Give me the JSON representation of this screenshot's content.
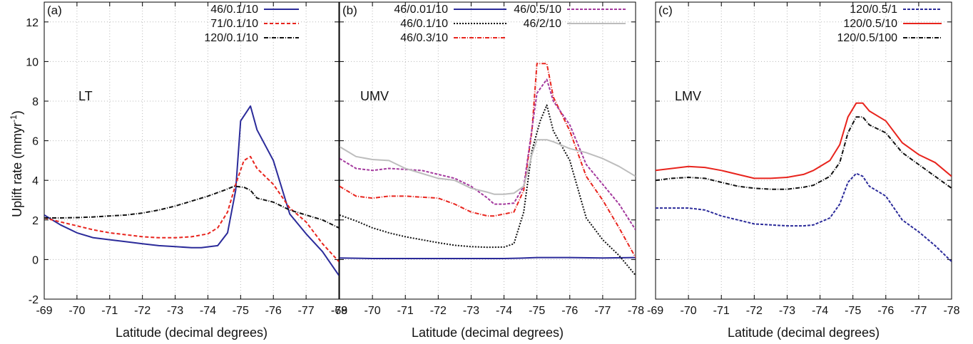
{
  "figure": {
    "ylabel_main": "Uplift rate (mmyr",
    "ylabel_sup": "-1",
    "ylabel_end": ")"
  },
  "chart_data": [
    {
      "type": "line",
      "panel_label": "(a)",
      "region_label": "LT",
      "xlabel": "Latitude (decimal degrees)",
      "xlim": [
        -69,
        -78
      ],
      "ylim": [
        -2,
        13
      ],
      "xticks": [
        -69,
        -70,
        -71,
        -72,
        -73,
        -74,
        -75,
        -76,
        -77,
        -78
      ],
      "yticks": [
        -2,
        0,
        2,
        4,
        6,
        8,
        10,
        12
      ],
      "grid": true,
      "legend_position": "top-right",
      "series": [
        {
          "name": "46/0.1/10",
          "color": "#2b2b9a",
          "dash": "solid",
          "x": [
            -69,
            -69.5,
            -70,
            -70.5,
            -71,
            -71.5,
            -72,
            -72.5,
            -73,
            -73.5,
            -73.8,
            -74.3,
            -74.6,
            -74.85,
            -75.0,
            -75.3,
            -75.5,
            -76,
            -76.5,
            -77,
            -77.5,
            -78
          ],
          "y": [
            2.25,
            1.75,
            1.35,
            1.1,
            1.0,
            0.9,
            0.8,
            0.7,
            0.65,
            0.6,
            0.6,
            0.7,
            1.35,
            3.5,
            7.0,
            7.75,
            6.55,
            5.0,
            2.3,
            1.3,
            0.4,
            -0.8
          ]
        },
        {
          "name": "71/0.1/10",
          "color": "#e8241d",
          "dash": "5,3",
          "x": [
            -69,
            -69.5,
            -70,
            -70.5,
            -71,
            -71.5,
            -72,
            -72.5,
            -73,
            -73.5,
            -74,
            -74.3,
            -74.6,
            -74.85,
            -75.1,
            -75.3,
            -75.5,
            -76,
            -76.5,
            -77,
            -77.5,
            -78
          ],
          "y": [
            2.1,
            1.9,
            1.7,
            1.5,
            1.35,
            1.25,
            1.15,
            1.1,
            1.1,
            1.15,
            1.3,
            1.6,
            2.4,
            3.8,
            5.0,
            5.2,
            4.6,
            3.8,
            2.6,
            1.9,
            0.8,
            -0.1
          ]
        },
        {
          "name": "120/0.1/10",
          "color": "#111111",
          "dash": "6,2,1,2",
          "x": [
            -69,
            -69.5,
            -70,
            -70.5,
            -71,
            -71.5,
            -72,
            -72.5,
            -73,
            -73.5,
            -74,
            -74.5,
            -74.8,
            -75.1,
            -75.3,
            -75.5,
            -76,
            -76.5,
            -77,
            -77.5,
            -78
          ],
          "y": [
            2.1,
            2.1,
            2.12,
            2.15,
            2.2,
            2.25,
            2.35,
            2.5,
            2.7,
            2.95,
            3.2,
            3.5,
            3.7,
            3.65,
            3.5,
            3.1,
            2.9,
            2.5,
            2.25,
            2.0,
            1.6
          ]
        }
      ]
    },
    {
      "type": "line",
      "panel_label": "(b)",
      "region_label": "UMV",
      "xlabel": "Latitude (decimal degrees)",
      "xlim": [
        -69,
        -78
      ],
      "ylim": [
        -2,
        13
      ],
      "xticks": [
        -69,
        -70,
        -71,
        -72,
        -73,
        -74,
        -75,
        -76,
        -77,
        -78
      ],
      "grid": true,
      "legend_position": "top",
      "series": [
        {
          "name": "46/0.01/10",
          "color": "#2b2b9a",
          "dash": "solid",
          "x": [
            -69,
            -70,
            -71,
            -72,
            -73,
            -74,
            -74.5,
            -75,
            -75.5,
            -76,
            -77,
            -78
          ],
          "y": [
            0.08,
            0.05,
            0.05,
            0.05,
            0.05,
            0.05,
            0.07,
            0.1,
            0.1,
            0.1,
            0.08,
            0.1
          ]
        },
        {
          "name": "46/0.1/10",
          "color": "#111111",
          "dash": "2,2",
          "x": [
            -69,
            -69.5,
            -70,
            -70.5,
            -71,
            -71.5,
            -72,
            -72.5,
            -73,
            -73.5,
            -74,
            -74.3,
            -74.6,
            -74.85,
            -75.1,
            -75.3,
            -75.5,
            -76,
            -76.5,
            -77,
            -77.5,
            -78
          ],
          "y": [
            2.25,
            1.95,
            1.6,
            1.35,
            1.15,
            1.0,
            0.85,
            0.72,
            0.65,
            0.62,
            0.63,
            0.8,
            2.4,
            5.5,
            7.0,
            7.8,
            6.5,
            5.0,
            2.1,
            1.0,
            0.2,
            -0.8
          ]
        },
        {
          "name": "46/0.3/10",
          "color": "#e8241d",
          "dash": "6,2,1,2",
          "x": [
            -69,
            -69.5,
            -70,
            -70.5,
            -71,
            -71.5,
            -72,
            -72.5,
            -73,
            -73.5,
            -73.7,
            -74,
            -74.3,
            -74.6,
            -74.85,
            -75.0,
            -75.3,
            -75.5,
            -76,
            -76.5,
            -77,
            -77.5,
            -78
          ],
          "y": [
            3.7,
            3.2,
            3.1,
            3.2,
            3.2,
            3.15,
            3.1,
            2.8,
            2.4,
            2.2,
            2.2,
            2.3,
            2.4,
            3.5,
            6.5,
            9.9,
            9.9,
            8.2,
            6.5,
            4.2,
            3.0,
            1.6,
            0.1
          ]
        },
        {
          "name": "46/0.5/10",
          "color": "#a43a9e",
          "dash": "4,2",
          "x": [
            -69,
            -69.5,
            -70,
            -70.5,
            -71,
            -71.5,
            -72,
            -72.5,
            -73,
            -73.5,
            -73.7,
            -74,
            -74.3,
            -74.6,
            -74.85,
            -75.0,
            -75.3,
            -75.5,
            -76,
            -76.5,
            -77,
            -77.5,
            -78
          ],
          "y": [
            5.1,
            4.6,
            4.5,
            4.6,
            4.55,
            4.5,
            4.3,
            4.1,
            3.7,
            3.1,
            2.8,
            2.8,
            2.85,
            3.7,
            6.6,
            8.4,
            9.1,
            8.0,
            6.8,
            4.8,
            3.8,
            2.8,
            1.5
          ]
        },
        {
          "name": "46/2/10",
          "color": "#bdbdbd",
          "dash": "solid",
          "x": [
            -69,
            -69.5,
            -70,
            -70.5,
            -71,
            -71.5,
            -72,
            -72.5,
            -73,
            -73.5,
            -73.7,
            -74,
            -74.3,
            -74.6,
            -74.85,
            -75.0,
            -75.3,
            -75.5,
            -76,
            -76.5,
            -77,
            -77.5,
            -78
          ],
          "y": [
            5.7,
            5.2,
            5.05,
            5.0,
            4.6,
            4.35,
            4.1,
            4.0,
            3.6,
            3.4,
            3.3,
            3.3,
            3.35,
            3.7,
            5.3,
            6.05,
            6.05,
            5.95,
            5.6,
            5.4,
            5.1,
            4.7,
            4.2
          ]
        }
      ]
    },
    {
      "type": "line",
      "panel_label": "(c)",
      "region_label": "LMV",
      "xlabel": "Latitude (decimal degrees)",
      "xlim": [
        -69,
        -78
      ],
      "ylim": [
        -2,
        13
      ],
      "xticks": [
        -69,
        -70,
        -71,
        -72,
        -73,
        -74,
        -75,
        -76,
        -77,
        -78
      ],
      "grid": true,
      "legend_position": "top-right",
      "series": [
        {
          "name": "120/0.5/1",
          "color": "#2b2b9a",
          "dash": "4,2",
          "x": [
            -69,
            -69.5,
            -70,
            -70.5,
            -71,
            -71.5,
            -72,
            -72.5,
            -73,
            -73.5,
            -73.8,
            -74.3,
            -74.6,
            -74.85,
            -75.1,
            -75.3,
            -75.5,
            -76,
            -76.5,
            -77,
            -77.5,
            -78
          ],
          "y": [
            2.6,
            2.6,
            2.6,
            2.5,
            2.2,
            2.0,
            1.8,
            1.75,
            1.7,
            1.7,
            1.75,
            2.1,
            2.8,
            3.9,
            4.35,
            4.2,
            3.7,
            3.2,
            2.0,
            1.4,
            0.7,
            -0.1
          ]
        },
        {
          "name": "120/0.5/10",
          "color": "#e8241d",
          "dash": "solid",
          "x": [
            -69,
            -69.5,
            -70,
            -70.5,
            -71,
            -71.5,
            -72,
            -72.5,
            -73,
            -73.5,
            -73.8,
            -74.3,
            -74.6,
            -74.85,
            -75.1,
            -75.3,
            -75.5,
            -76,
            -76.5,
            -77,
            -77.5,
            -78
          ],
          "y": [
            4.5,
            4.6,
            4.7,
            4.65,
            4.5,
            4.3,
            4.1,
            4.1,
            4.15,
            4.3,
            4.5,
            5.0,
            5.8,
            7.2,
            7.9,
            7.9,
            7.5,
            7.0,
            5.9,
            5.3,
            4.9,
            4.2
          ]
        },
        {
          "name": "120/0.5/100",
          "color": "#111111",
          "dash": "6,2,1,2",
          "x": [
            -69,
            -69.5,
            -70,
            -70.5,
            -71,
            -71.5,
            -72,
            -72.5,
            -73,
            -73.5,
            -73.8,
            -74.3,
            -74.6,
            -74.85,
            -75.1,
            -75.3,
            -75.5,
            -76,
            -76.5,
            -77,
            -77.5,
            -78
          ],
          "y": [
            4.0,
            4.1,
            4.15,
            4.1,
            3.9,
            3.7,
            3.6,
            3.55,
            3.55,
            3.65,
            3.75,
            4.2,
            4.9,
            6.4,
            7.2,
            7.2,
            6.8,
            6.4,
            5.4,
            4.8,
            4.2,
            3.6
          ]
        }
      ]
    }
  ]
}
